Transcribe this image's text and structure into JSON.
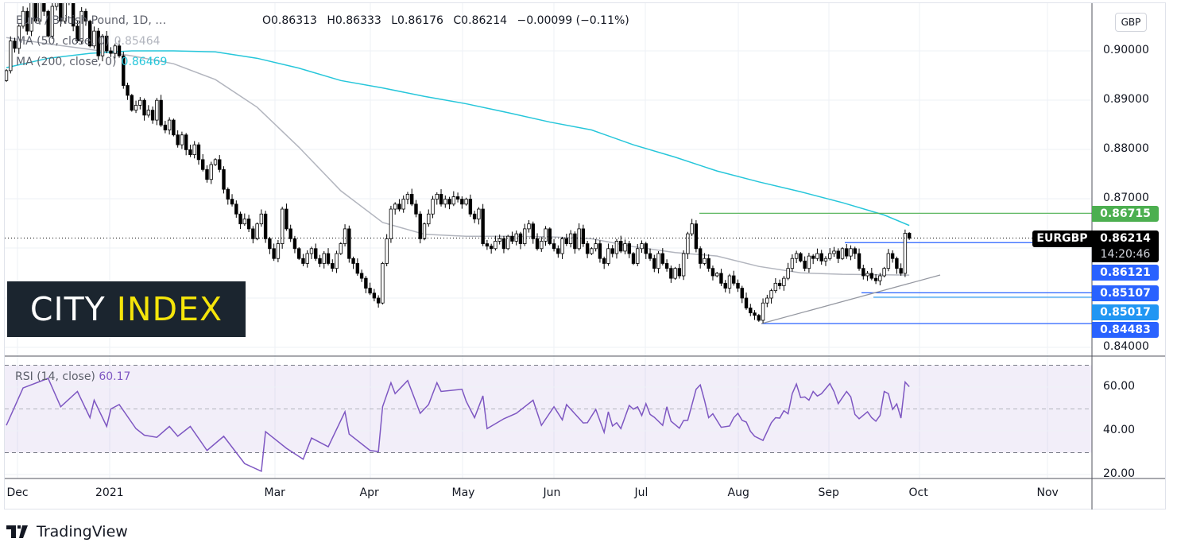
{
  "header": {
    "symbol_title": "Euro / British Pound, 1D, …",
    "ohlc": {
      "open": "O0.86313",
      "high": "H0.86333",
      "low": "L0.86176",
      "close": "C0.86214",
      "change": "−0.00099 (−0.11%)"
    },
    "ma50_label": "MA (50, close, 0)",
    "ma50_value": "0.85464",
    "ma200_label": "MA (200, close, 0)",
    "ma200_value": "0.86469",
    "currency_button": "GBP"
  },
  "logo": {
    "word1": "CITY",
    "word2": "INDEX"
  },
  "footer": {
    "brand": "TradingView"
  },
  "colors": {
    "ma200": "#26c6da",
    "ma50": "#b2b5be",
    "rsi": "#7e57c2",
    "up": "#ffffff",
    "down": "#000000",
    "green_level": "#4caf50",
    "blue_level": "#2962ff",
    "light_blue_level": "#2196f3"
  },
  "price_axis": {
    "ticks": [
      "0.90000",
      "0.89000",
      "0.88000",
      "0.87000",
      "0.84000"
    ]
  },
  "badges": {
    "symbol": "EURGBP",
    "current_price": "0.86214",
    "countdown": "14:20:46",
    "levels": [
      {
        "value": "0.86715",
        "color": "#4caf50"
      },
      {
        "value": "0.86121",
        "color": "#2962ff"
      },
      {
        "value": "0.85107",
        "color": "#2962ff"
      },
      {
        "value": "0.85017",
        "color": "#2196f3"
      },
      {
        "value": "0.84483",
        "color": "#2962ff"
      }
    ]
  },
  "rsi": {
    "label": "RSI (14, close)",
    "value": "60.17",
    "ticks": [
      "60.00",
      "40.00",
      "20.00"
    ]
  },
  "date_axis": {
    "ticks": [
      "Dec",
      "2021",
      "Mar",
      "Apr",
      "May",
      "Jun",
      "Jul",
      "Aug",
      "Sep",
      "Oct",
      "Nov"
    ]
  },
  "chart_data": {
    "type": "candlestick",
    "timeframe": "1D",
    "ylim": [
      0.8365,
      0.9095
    ],
    "grid": true,
    "closes": [
      0.896,
      0.902,
      0.9005,
      0.905,
      0.908,
      0.904,
      0.91,
      0.906,
      0.912,
      0.908,
      0.903,
      0.909,
      0.911,
      0.906,
      0.914,
      0.91,
      0.905,
      0.902,
      0.908,
      0.906,
      0.901,
      0.904,
      0.899,
      0.903,
      0.9,
      0.8995,
      0.901,
      0.899,
      0.893,
      0.891,
      0.888,
      0.889,
      0.89,
      0.887,
      0.888,
      0.886,
      0.89,
      0.885,
      0.884,
      0.886,
      0.883,
      0.881,
      0.883,
      0.88,
      0.879,
      0.881,
      0.878,
      0.876,
      0.874,
      0.877,
      0.878,
      0.876,
      0.872,
      0.87,
      0.869,
      0.867,
      0.865,
      0.866,
      0.864,
      0.862,
      0.865,
      0.867,
      0.862,
      0.86,
      0.858,
      0.861,
      0.868,
      0.864,
      0.862,
      0.86,
      0.858,
      0.857,
      0.859,
      0.86,
      0.858,
      0.857,
      0.859,
      0.857,
      0.856,
      0.859,
      0.861,
      0.864,
      0.858,
      0.857,
      0.855,
      0.854,
      0.852,
      0.851,
      0.85,
      0.849,
      0.857,
      0.862,
      0.868,
      0.869,
      0.868,
      0.87,
      0.871,
      0.869,
      0.867,
      0.862,
      0.865,
      0.867,
      0.87,
      0.871,
      0.869,
      0.87,
      0.869,
      0.8705,
      0.87,
      0.869,
      0.87,
      0.867,
      0.866,
      0.868,
      0.861,
      0.8605,
      0.86,
      0.8615,
      0.862,
      0.86,
      0.8625,
      0.8615,
      0.863,
      0.861,
      0.864,
      0.865,
      0.862,
      0.86,
      0.8615,
      0.864,
      0.861,
      0.86,
      0.859,
      0.862,
      0.861,
      0.863,
      0.86,
      0.864,
      0.861,
      0.859,
      0.86,
      0.861,
      0.858,
      0.857,
      0.86,
      0.859,
      0.8615,
      0.8595,
      0.861,
      0.859,
      0.857,
      0.86,
      0.861,
      0.859,
      0.858,
      0.856,
      0.859,
      0.857,
      0.856,
      0.854,
      0.856,
      0.8545,
      0.859,
      0.863,
      0.865,
      0.86,
      0.857,
      0.858,
      0.856,
      0.8545,
      0.855,
      0.853,
      0.852,
      0.8545,
      0.853,
      0.852,
      0.85,
      0.848,
      0.847,
      0.8465,
      0.8455,
      0.849,
      0.85,
      0.8515,
      0.853,
      0.8525,
      0.854,
      0.856,
      0.858,
      0.859,
      0.8575,
      0.856,
      0.8585,
      0.858,
      0.859,
      0.8575,
      0.858,
      0.859,
      0.8595,
      0.858,
      0.86,
      0.8585,
      0.86,
      0.859,
      0.856,
      0.8545,
      0.855,
      0.854,
      0.8535,
      0.8545,
      0.856,
      0.859,
      0.858,
      0.856,
      0.855,
      0.8631,
      0.8621
    ],
    "last_bar": {
      "open": 0.86313,
      "high": 0.86333,
      "low": 0.86176,
      "close": 0.86214
    },
    "ma50_every_10_bars": [
      0.9027,
      0.9014,
      0.9003,
      0.899,
      0.8974,
      0.8942,
      0.8886,
      0.8805,
      0.8717,
      0.8653,
      0.8629,
      0.8625,
      0.8625,
      0.8624,
      0.862,
      0.8604,
      0.8592,
      0.8585,
      0.8564,
      0.8551,
      0.8548,
      0.8547,
      0.85464
    ],
    "ma200_every_10_bars": [
      0.8966,
      0.8985,
      0.8995,
      0.9,
      0.9,
      0.8998,
      0.8985,
      0.8965,
      0.894,
      0.8925,
      0.8908,
      0.8893,
      0.8875,
      0.8856,
      0.884,
      0.881,
      0.8785,
      0.8757,
      0.8735,
      0.8715,
      0.8693,
      0.8668,
      0.86469
    ],
    "levels": [
      0.86715,
      0.86121,
      0.85107,
      0.85017,
      0.84483
    ],
    "rsi_ylim": [
      17,
      73
    ],
    "rsi_bands": [
      30,
      50,
      70
    ],
    "rsi_points": [
      [
        0,
        42.5
      ],
      [
        4,
        59.6
      ],
      [
        10,
        64
      ],
      [
        13,
        51
      ],
      [
        17,
        58
      ],
      [
        20,
        46
      ],
      [
        21,
        54
      ],
      [
        24,
        42
      ],
      [
        25,
        50
      ],
      [
        27,
        52
      ],
      [
        31,
        41
      ],
      [
        33,
        38
      ],
      [
        36,
        37
      ],
      [
        39,
        42
      ],
      [
        41,
        37.5
      ],
      [
        44,
        42
      ],
      [
        48,
        31
      ],
      [
        52,
        37.5
      ],
      [
        57,
        25
      ],
      [
        61,
        21.5
      ],
      [
        62,
        39.6
      ],
      [
        67,
        32
      ],
      [
        71,
        27
      ],
      [
        73,
        36.7
      ],
      [
        77,
        32.7
      ],
      [
        81,
        48.7
      ],
      [
        82,
        38.5
      ],
      [
        87,
        31
      ],
      [
        89,
        30.5
      ],
      [
        90,
        51
      ],
      [
        92,
        62
      ],
      [
        93,
        57
      ],
      [
        96,
        63
      ],
      [
        99,
        48
      ],
      [
        101,
        52
      ],
      [
        103,
        62
      ],
      [
        104,
        58
      ],
      [
        109,
        59
      ],
      [
        110,
        53.5
      ],
      [
        112,
        46
      ],
      [
        114,
        56
      ],
      [
        115,
        41
      ],
      [
        119,
        45.5
      ],
      [
        122,
        48
      ],
      [
        126,
        54
      ],
      [
        128,
        42.5
      ],
      [
        131,
        51
      ],
      [
        133,
        45
      ],
      [
        134,
        52
      ],
      [
        138,
        43.6
      ],
      [
        139,
        43.7
      ],
      [
        141,
        49.8
      ],
      [
        143,
        39.3
      ],
      [
        144,
        48.7
      ],
      [
        145,
        42.2
      ],
      [
        146,
        43.7
      ],
      [
        147,
        41
      ],
      [
        149,
        51.6
      ],
      [
        150,
        49.9
      ],
      [
        151,
        51
      ],
      [
        152,
        47
      ],
      [
        153,
        52.4
      ],
      [
        154,
        47.5
      ],
      [
        155,
        46.2
      ],
      [
        157,
        42.5
      ],
      [
        158,
        51
      ],
      [
        159,
        44.4
      ],
      [
        161,
        41.2
      ],
      [
        162,
        44.7
      ],
      [
        163,
        44.8
      ],
      [
        165,
        59
      ],
      [
        166,
        61
      ],
      [
        167,
        54
      ],
      [
        168,
        46
      ],
      [
        169,
        47.8
      ],
      [
        171,
        41.6
      ],
      [
        173,
        42.2
      ],
      [
        174,
        46
      ],
      [
        175,
        48
      ],
      [
        176,
        44.8
      ],
      [
        177,
        44
      ],
      [
        178,
        39.8
      ],
      [
        179,
        37.5
      ],
      [
        181,
        35.6
      ],
      [
        183,
        43.7
      ],
      [
        184,
        46
      ],
      [
        185,
        45.8
      ],
      [
        186,
        49.2
      ],
      [
        187,
        47.8
      ],
      [
        188,
        57
      ],
      [
        189,
        61.4
      ],
      [
        190,
        55.2
      ],
      [
        191,
        55.5
      ],
      [
        192,
        54
      ],
      [
        193,
        58
      ],
      [
        194,
        55.9
      ],
      [
        195,
        57
      ],
      [
        197,
        61.6
      ],
      [
        198,
        57.9
      ],
      [
        199,
        52.4
      ],
      [
        201,
        58
      ],
      [
        202,
        55.5
      ],
      [
        203,
        47.5
      ],
      [
        204,
        45.5
      ],
      [
        206,
        48.7
      ],
      [
        207,
        46
      ],
      [
        208,
        44.4
      ],
      [
        209,
        47
      ],
      [
        210,
        58
      ],
      [
        211,
        57
      ],
      [
        212,
        49.8
      ],
      [
        213,
        52.3
      ],
      [
        214,
        45.8
      ],
      [
        215,
        62.3
      ],
      [
        216,
        60.17
      ]
    ]
  }
}
